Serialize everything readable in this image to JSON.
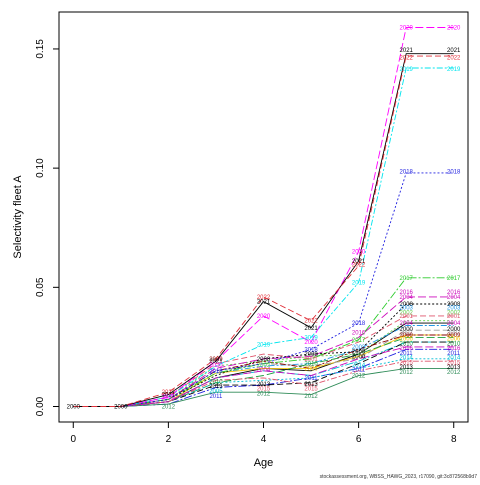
{
  "chart_data": {
    "type": "line",
    "xlabel": "Age",
    "ylabel": "Selectivity fleet A",
    "x_ticks": [
      "0",
      "2",
      "4",
      "6",
      "8"
    ],
    "y_ticks": [
      "0.00",
      "0.05",
      "0.10",
      "0.15"
    ],
    "xlim": [
      -0.3,
      8.3
    ],
    "ylim": [
      -0.0065,
      0.1655
    ],
    "x": [
      0,
      1,
      2,
      3,
      4,
      5,
      6,
      7,
      8
    ],
    "grid": false,
    "legend": "none (years labeled on lines)",
    "footer": "stockassessment.org, WBSS_HAWG_2023, r17090, git:3c872568b9d7",
    "series": [
      {
        "name": "2000",
        "color": "#000000",
        "dash": "",
        "values": [
          0,
          0,
          0.002,
          0.012,
          0.016,
          0.015,
          0.022,
          0.035,
          0.035
        ]
      },
      {
        "name": "2001",
        "color": "#DF536B",
        "dash": "6,3",
        "values": [
          0,
          0,
          0.004,
          0.018,
          0.022,
          0.02,
          0.027,
          0.038,
          0.038
        ]
      },
      {
        "name": "2002",
        "color": "#61D04F",
        "dash": "2,2",
        "values": [
          0,
          0,
          0.003,
          0.017,
          0.019,
          0.021,
          0.022,
          0.036,
          0.036
        ]
      },
      {
        "name": "2003",
        "color": "#2297E6",
        "dash": "6,2,2,2",
        "values": [
          0,
          0,
          0.002,
          0.014,
          0.017,
          0.018,
          0.024,
          0.034,
          0.034
        ]
      },
      {
        "name": "2004",
        "color": "#CD0BBC",
        "dash": "8,3",
        "values": [
          0,
          0,
          0.003,
          0.016,
          0.02,
          0.021,
          0.029,
          0.046,
          0.046
        ]
      },
      {
        "name": "2005",
        "color": "#00BCD4",
        "dash": "8,2,2,2",
        "values": [
          0,
          0,
          0.002,
          0.012,
          0.015,
          0.013,
          0.019,
          0.027,
          0.027
        ]
      },
      {
        "name": "2006",
        "color": "#F5C710",
        "dash": "",
        "values": [
          0,
          0,
          0.002,
          0.014,
          0.016,
          0.016,
          0.021,
          0.03,
          0.03
        ]
      },
      {
        "name": "2007",
        "color": "#9E9E9E",
        "dash": "6,3",
        "values": [
          0,
          0,
          0.003,
          0.015,
          0.018,
          0.017,
          0.02,
          0.032,
          0.032
        ]
      },
      {
        "name": "2008",
        "color": "#000000",
        "dash": "2,2",
        "values": [
          0,
          0,
          0.003,
          0.013,
          0.02,
          0.022,
          0.023,
          0.043,
          0.043
        ]
      },
      {
        "name": "2009",
        "color": "#8B0000",
        "dash": "6,2,2,2",
        "values": [
          0,
          0,
          0.003,
          0.015,
          0.019,
          0.016,
          0.024,
          0.03,
          0.03
        ]
      },
      {
        "name": "2010",
        "color": "#1B9E3E",
        "dash": "8,3",
        "values": [
          0,
          0,
          0.002,
          0.01,
          0.013,
          0.018,
          0.022,
          0.029,
          0.029
        ]
      },
      {
        "name": "2011",
        "color": "#1F1FE0",
        "dash": "8,2,2,2",
        "values": [
          0,
          0,
          0.001,
          0.008,
          0.009,
          0.012,
          0.016,
          0.024,
          0.024
        ]
      },
      {
        "name": "2012",
        "color": "#2E8B57",
        "dash": "",
        "values": [
          0,
          0,
          0.001,
          0.006,
          0.006,
          0.005,
          0.013,
          0.016,
          0.016
        ]
      },
      {
        "name": "2013",
        "color": "#000000",
        "dash": "6,3",
        "values": [
          0,
          0,
          0.002,
          0.009,
          0.009,
          0.01,
          0.018,
          0.027,
          0.027
        ]
      },
      {
        "name": "2014",
        "color": "#00BCD4",
        "dash": "2,2",
        "values": [
          0,
          0,
          0.002,
          0.01,
          0.011,
          0.012,
          0.016,
          0.02,
          0.02
        ]
      },
      {
        "name": "2015",
        "color": "#DF536B",
        "dash": "6,2,2,2",
        "values": [
          0,
          0,
          0.002,
          0.011,
          0.012,
          0.009,
          0.015,
          0.019,
          0.019
        ]
      },
      {
        "name": "2016",
        "color": "#CD0BBC",
        "dash": "8,3",
        "values": [
          0,
          0,
          0.002,
          0.012,
          0.015,
          0.013,
          0.02,
          0.025,
          0.025
        ]
      },
      {
        "name": "2017",
        "color": "#2BCB2B",
        "dash": "8,2,2,2",
        "values": [
          0,
          0,
          0.003,
          0.014,
          0.018,
          0.02,
          0.028,
          0.054,
          0.054
        ]
      },
      {
        "name": "2018",
        "color": "#1F1FE0",
        "dash": "2,2",
        "values": [
          0,
          0,
          0.003,
          0.015,
          0.018,
          0.024,
          0.035,
          0.098,
          0.098
        ]
      },
      {
        "name": "2019",
        "color": "#00E5EE",
        "dash": "6,2,2,2",
        "values": [
          0,
          0,
          0.004,
          0.017,
          0.026,
          0.029,
          0.052,
          0.142,
          0.142
        ]
      },
      {
        "name": "2020",
        "color": "#FF00FF",
        "dash": "8,3",
        "values": [
          0,
          0,
          0.004,
          0.019,
          0.038,
          0.027,
          0.065,
          0.159,
          0.159
        ]
      },
      {
        "name": "2021",
        "color": "#000000",
        "dash": "",
        "values": [
          0,
          0,
          0.005,
          0.019,
          0.044,
          0.033,
          0.061,
          0.148,
          0.148
        ]
      },
      {
        "name": "2022",
        "color": "#E0303A",
        "dash": "6,3",
        "values": [
          0,
          0,
          0.006,
          0.02,
          0.046,
          0.036,
          0.059,
          0.147,
          0.147
        ]
      }
    ],
    "labels": [
      {
        "text": "2000",
        "color": "#000000",
        "x": 0,
        "y": 0
      },
      {
        "text": "2000",
        "color": "#000000",
        "x": 1,
        "y": 0
      },
      {
        "text": "2012",
        "color": "#2E8B57",
        "x": 2,
        "y": 0
      },
      {
        "text": "2022",
        "color": "#E0303A",
        "x": 2,
        "y": 0.006
      },
      {
        "text": "2021",
        "color": "#000000",
        "x": 2,
        "y": 0.005
      },
      {
        "text": "2020",
        "color": "#FF00FF",
        "x": 2,
        "y": 0.004
      },
      {
        "text": "2009",
        "color": "#8B0000",
        "x": 3,
        "y": 0.02
      },
      {
        "text": "2021",
        "color": "#000000",
        "x": 3,
        "y": 0.019
      },
      {
        "text": "2020",
        "color": "#FF00FF",
        "x": 3,
        "y": 0.0175
      },
      {
        "text": "2018",
        "color": "#1F1FE0",
        "x": 3,
        "y": 0.015
      },
      {
        "text": "2010",
        "color": "#1B9E3E",
        "x": 3,
        "y": 0.0105
      },
      {
        "text": "2013",
        "color": "#000000",
        "x": 3,
        "y": 0.0085
      },
      {
        "text": "2005",
        "color": "#00BCD4",
        "x": 3,
        "y": 0.0065
      },
      {
        "text": "2011",
        "color": "#1F1FE0",
        "x": 3,
        "y": 0.0045
      },
      {
        "text": "2022",
        "color": "#E0303A",
        "x": 4,
        "y": 0.046
      },
      {
        "text": "2021",
        "color": "#000000",
        "x": 4,
        "y": 0.044
      },
      {
        "text": "2020",
        "color": "#FF00FF",
        "x": 4,
        "y": 0.038
      },
      {
        "text": "2019",
        "color": "#00E5EE",
        "x": 4,
        "y": 0.026
      },
      {
        "text": "2008",
        "color": "#000000",
        "x": 4,
        "y": 0.02
      },
      {
        "text": "2002",
        "color": "#61D04F",
        "x": 4,
        "y": 0.0175
      },
      {
        "text": "2004",
        "color": "#CD0BBC",
        "x": 4,
        "y": 0.0155
      },
      {
        "text": "2013",
        "color": "#000000",
        "x": 4,
        "y": 0.0095
      },
      {
        "text": "2015",
        "color": "#DF536B",
        "x": 4,
        "y": 0.0075
      },
      {
        "text": "2012",
        "color": "#2E8B57",
        "x": 4,
        "y": 0.0055
      },
      {
        "text": "2022",
        "color": "#E0303A",
        "x": 5,
        "y": 0.036
      },
      {
        "text": "2021",
        "color": "#000000",
        "x": 5,
        "y": 0.033
      },
      {
        "text": "2019",
        "color": "#00E5EE",
        "x": 5,
        "y": 0.029
      },
      {
        "text": "2020",
        "color": "#FF00FF",
        "x": 5,
        "y": 0.027
      },
      {
        "text": "2018",
        "color": "#1F1FE0",
        "x": 5,
        "y": 0.024
      },
      {
        "text": "2008",
        "color": "#000000",
        "x": 5,
        "y": 0.022
      },
      {
        "text": "2001",
        "color": "#DF536B",
        "x": 5,
        "y": 0.02
      },
      {
        "text": "2010",
        "color": "#1B9E3E",
        "x": 5,
        "y": 0.018
      },
      {
        "text": "2006",
        "color": "#F5C710",
        "x": 5,
        "y": 0.016
      },
      {
        "text": "2011",
        "color": "#1F1FE0",
        "x": 5,
        "y": 0.012
      },
      {
        "text": "2013",
        "color": "#000000",
        "x": 5,
        "y": 0.0095
      },
      {
        "text": "2015",
        "color": "#DF536B",
        "x": 5,
        "y": 0.0075
      },
      {
        "text": "2012",
        "color": "#2E8B57",
        "x": 5,
        "y": 0.0045
      },
      {
        "text": "2020",
        "color": "#FF00FF",
        "x": 6,
        "y": 0.065
      },
      {
        "text": "2021",
        "color": "#000000",
        "x": 6,
        "y": 0.061
      },
      {
        "text": "2022",
        "color": "#E0303A",
        "x": 6,
        "y": 0.0595
      },
      {
        "text": "2019",
        "color": "#00E5EE",
        "x": 6,
        "y": 0.052
      },
      {
        "text": "2018",
        "color": "#1F1FE0",
        "x": 6,
        "y": 0.035
      },
      {
        "text": "2016",
        "color": "#CD0BBC",
        "x": 6,
        "y": 0.031
      },
      {
        "text": "2017",
        "color": "#2BCB2B",
        "x": 6,
        "y": 0.028
      },
      {
        "text": "2003",
        "color": "#2297E6",
        "x": 6,
        "y": 0.025
      },
      {
        "text": "2008",
        "color": "#000000",
        "x": 6,
        "y": 0.023
      },
      {
        "text": "2000",
        "color": "#000000",
        "x": 6,
        "y": 0.021
      },
      {
        "text": "2014",
        "color": "#00BCD4",
        "x": 6,
        "y": 0.0175
      },
      {
        "text": "2011",
        "color": "#1F1FE0",
        "x": 6,
        "y": 0.0155
      },
      {
        "text": "2012",
        "color": "#2E8B57",
        "x": 6,
        "y": 0.013
      },
      {
        "text": "2020",
        "color": "#FF00FF",
        "x": 7,
        "y": 0.159
      },
      {
        "text": "2021",
        "color": "#000000",
        "x": 7,
        "y": 0.1495
      },
      {
        "text": "2022",
        "color": "#E0303A",
        "x": 7,
        "y": 0.1465
      },
      {
        "text": "2019",
        "color": "#00E5EE",
        "x": 7,
        "y": 0.1415
      },
      {
        "text": "2018",
        "color": "#1F1FE0",
        "x": 7,
        "y": 0.0985
      },
      {
        "text": "2017",
        "color": "#2BCB2B",
        "x": 7,
        "y": 0.054
      },
      {
        "text": "2016",
        "color": "#CD0BBC",
        "x": 7,
        "y": 0.048
      },
      {
        "text": "2004",
        "color": "#CD0BBC",
        "x": 7,
        "y": 0.046
      },
      {
        "text": "2008",
        "color": "#000000",
        "x": 7,
        "y": 0.043
      },
      {
        "text": "2003",
        "color": "#2297E6",
        "x": 7,
        "y": 0.0415
      },
      {
        "text": "2002",
        "color": "#61D04F",
        "x": 7,
        "y": 0.0395
      },
      {
        "text": "2001",
        "color": "#DF536B",
        "x": 7,
        "y": 0.038
      },
      {
        "text": "2004",
        "color": "#CD0BBC",
        "x": 7,
        "y": 0.035
      },
      {
        "text": "2000",
        "color": "#000000",
        "x": 7,
        "y": 0.0325
      },
      {
        "text": "2007",
        "color": "#9E9E9E",
        "x": 7,
        "y": 0.031
      },
      {
        "text": "2009",
        "color": "#8B0000",
        "x": 7,
        "y": 0.03
      },
      {
        "text": "2006",
        "color": "#F5C710",
        "x": 7,
        "y": 0.0285
      },
      {
        "text": "2010",
        "color": "#1B9E3E",
        "x": 7,
        "y": 0.0265
      },
      {
        "text": "2016",
        "color": "#CD0BBC",
        "x": 7,
        "y": 0.0245
      },
      {
        "text": "2011",
        "color": "#1F1FE0",
        "x": 7,
        "y": 0.0225
      },
      {
        "text": "2014",
        "color": "#00BCD4",
        "x": 7,
        "y": 0.0205
      },
      {
        "text": "2015",
        "color": "#DF536B",
        "x": 7,
        "y": 0.0185
      },
      {
        "text": "2013",
        "color": "#000000",
        "x": 7,
        "y": 0.0165
      },
      {
        "text": "2012",
        "color": "#2E8B57",
        "x": 7,
        "y": 0.0145
      },
      {
        "text": "2020",
        "color": "#FF00FF",
        "x": 8,
        "y": 0.159
      },
      {
        "text": "2021",
        "color": "#000000",
        "x": 8,
        "y": 0.1495
      },
      {
        "text": "2022",
        "color": "#E0303A",
        "x": 8,
        "y": 0.1465
      },
      {
        "text": "2019",
        "color": "#00E5EE",
        "x": 8,
        "y": 0.1415
      },
      {
        "text": "2018",
        "color": "#1F1FE0",
        "x": 8,
        "y": 0.0985
      },
      {
        "text": "2017",
        "color": "#2BCB2B",
        "x": 8,
        "y": 0.054
      },
      {
        "text": "2016",
        "color": "#CD0BBC",
        "x": 8,
        "y": 0.048
      },
      {
        "text": "2004",
        "color": "#CD0BBC",
        "x": 8,
        "y": 0.046
      },
      {
        "text": "2008",
        "color": "#000000",
        "x": 8,
        "y": 0.043
      },
      {
        "text": "2003",
        "color": "#2297E6",
        "x": 8,
        "y": 0.0415
      },
      {
        "text": "2002",
        "color": "#61D04F",
        "x": 8,
        "y": 0.0395
      },
      {
        "text": "2001",
        "color": "#DF536B",
        "x": 8,
        "y": 0.038
      },
      {
        "text": "2004",
        "color": "#CD0BBC",
        "x": 8,
        "y": 0.035
      },
      {
        "text": "2000",
        "color": "#000000",
        "x": 8,
        "y": 0.0325
      },
      {
        "text": "2007",
        "color": "#9E9E9E",
        "x": 8,
        "y": 0.031
      },
      {
        "text": "2009",
        "color": "#8B0000",
        "x": 8,
        "y": 0.03
      },
      {
        "text": "2006",
        "color": "#F5C710",
        "x": 8,
        "y": 0.0285
      },
      {
        "text": "2010",
        "color": "#1B9E3E",
        "x": 8,
        "y": 0.0265
      },
      {
        "text": "2016",
        "color": "#CD0BBC",
        "x": 8,
        "y": 0.0245
      },
      {
        "text": "2011",
        "color": "#1F1FE0",
        "x": 8,
        "y": 0.0225
      },
      {
        "text": "2014",
        "color": "#00BCD4",
        "x": 8,
        "y": 0.0205
      },
      {
        "text": "2015",
        "color": "#DF536B",
        "x": 8,
        "y": 0.0185
      },
      {
        "text": "2013",
        "color": "#000000",
        "x": 8,
        "y": 0.0165
      },
      {
        "text": "2012",
        "color": "#2E8B57",
        "x": 8,
        "y": 0.0145
      }
    ]
  }
}
